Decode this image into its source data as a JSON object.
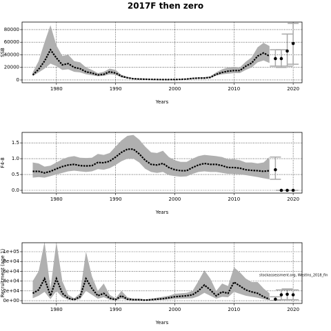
{
  "chart_data": [
    {
      "type": "line",
      "title": "2017F then zero",
      "ylabel": "SSB",
      "xlabel": "Years",
      "xlim": [
        1974.2,
        2021.5
      ],
      "xticks": [
        1980,
        1990,
        2000,
        2010,
        2020
      ],
      "ylim": [
        -4400,
        92000
      ],
      "yticks": [
        0,
        20000,
        40000,
        60000,
        80000
      ],
      "grid": true,
      "x": [
        1976,
        1977,
        1978,
        1979,
        1980,
        1981,
        1982,
        1983,
        1984,
        1985,
        1986,
        1987,
        1988,
        1989,
        1990,
        1991,
        1992,
        1993,
        1994,
        1995,
        1996,
        1997,
        1998,
        1999,
        2000,
        2001,
        2002,
        2003,
        2004,
        2005,
        2006,
        2007,
        2008,
        2009,
        2010,
        2011,
        2012,
        2013,
        2014,
        2015,
        2016
      ],
      "series": [
        {
          "color": "#000000",
          "band_color": "#b0b0b0",
          "values": [
            8000,
            17000,
            30000,
            48000,
            35000,
            24000,
            26000,
            20000,
            18000,
            13000,
            11000,
            8000,
            9000,
            13000,
            11000,
            6000,
            3500,
            2000,
            1500,
            1200,
            1000,
            800,
            700,
            700,
            800,
            1000,
            1500,
            2500,
            3000,
            3000,
            4000,
            9000,
            12000,
            14000,
            15000,
            15000,
            22000,
            27000,
            38000,
            43000,
            38000
          ],
          "upper": [
            12000,
            30000,
            60000,
            87000,
            55000,
            38000,
            40000,
            30000,
            28000,
            20000,
            16000,
            11000,
            13000,
            18000,
            16000,
            8000,
            5000,
            3000,
            2500,
            2000,
            1500,
            1300,
            1200,
            1200,
            1300,
            1500,
            2200,
            3500,
            4000,
            4500,
            6000,
            12000,
            17000,
            20000,
            21000,
            20000,
            29000,
            36000,
            52000,
            59000,
            54000
          ],
          "lower": [
            6000,
            12000,
            18000,
            26000,
            22000,
            16000,
            17000,
            13000,
            12000,
            9000,
            7500,
            6000,
            6500,
            9000,
            8000,
            4000,
            2500,
            1500,
            1000,
            800,
            600,
            500,
            400,
            400,
            500,
            700,
            1000,
            1800,
            2200,
            2200,
            3000,
            7000,
            9000,
            10000,
            11000,
            11000,
            16000,
            20000,
            28000,
            31000,
            27000
          ]
        }
      ],
      "projection": {
        "x": [
          2017,
          2018,
          2019,
          2020
        ],
        "values": [
          34000,
          34000,
          46000,
          58000
        ],
        "lower": [
          22000,
          20000,
          22000,
          25000
        ],
        "upper": [
          48000,
          48000,
          73000,
          90000
        ]
      }
    },
    {
      "type": "line",
      "ylabel": "F4-8",
      "xlabel": "Years",
      "xlim": [
        1974.2,
        2021.5
      ],
      "xticks": [
        1980,
        1990,
        2000,
        2010,
        2020
      ],
      "ylim": [
        -0.087,
        1.83
      ],
      "yticks": [
        {
          "value": 0,
          "label": "0.0"
        },
        {
          "value": 0.5,
          "label": "0.5"
        },
        {
          "value": 1,
          "label": "1.0"
        },
        {
          "value": 1.5,
          "label": "1.5"
        }
      ],
      "grid": true,
      "x": [
        1976,
        1977,
        1978,
        1979,
        1980,
        1981,
        1982,
        1983,
        1984,
        1985,
        1986,
        1987,
        1988,
        1989,
        1990,
        1991,
        1992,
        1993,
        1994,
        1995,
        1996,
        1997,
        1998,
        1999,
        2000,
        2001,
        2002,
        2003,
        2004,
        2005,
        2006,
        2007,
        2008,
        2009,
        2010,
        2011,
        2012,
        2013,
        2014,
        2015,
        2016
      ],
      "series": [
        {
          "color": "#000000",
          "band_color": "#b0b0b0",
          "values": [
            0.6,
            0.6,
            0.55,
            0.6,
            0.68,
            0.75,
            0.8,
            0.82,
            0.78,
            0.77,
            0.78,
            0.88,
            0.87,
            0.92,
            1.05,
            1.2,
            1.3,
            1.3,
            1.15,
            0.95,
            0.82,
            0.8,
            0.85,
            0.72,
            0.65,
            0.62,
            0.62,
            0.72,
            0.8,
            0.85,
            0.82,
            0.82,
            0.78,
            0.72,
            0.72,
            0.7,
            0.65,
            0.63,
            0.62,
            0.6,
            0.62
          ],
          "upper": [
            0.88,
            0.85,
            0.75,
            0.78,
            0.88,
            0.98,
            1.05,
            1.08,
            1.03,
            1.02,
            1.03,
            1.15,
            1.12,
            1.18,
            1.38,
            1.58,
            1.72,
            1.75,
            1.6,
            1.38,
            1.2,
            1.18,
            1.25,
            1.05,
            0.95,
            0.9,
            0.9,
            1,
            1.08,
            1.12,
            1.1,
            1.08,
            1.05,
            0.98,
            0.98,
            0.95,
            0.88,
            0.88,
            0.85,
            0.88,
            1.05
          ],
          "lower": [
            0.4,
            0.42,
            0.4,
            0.45,
            0.5,
            0.55,
            0.6,
            0.62,
            0.6,
            0.58,
            0.6,
            0.67,
            0.65,
            0.7,
            0.8,
            0.92,
            1,
            1,
            0.88,
            0.68,
            0.58,
            0.55,
            0.58,
            0.48,
            0.45,
            0.43,
            0.44,
            0.52,
            0.58,
            0.6,
            0.58,
            0.58,
            0.55,
            0.52,
            0.52,
            0.5,
            0.48,
            0.45,
            0.42,
            0.38,
            0.35
          ]
        }
      ],
      "projection": {
        "x": [
          2017,
          2018,
          2019,
          2020
        ],
        "values": [
          0.65,
          0,
          0,
          0
        ],
        "lower": [
          0.35,
          0,
          0,
          0
        ],
        "upper": [
          1.05,
          0,
          0,
          0
        ]
      }
    },
    {
      "type": "line",
      "ylabel": "Recruitment (age 1)",
      "xlabel": "Years",
      "annotation": "stockassessment.org, WestIns_2018_fin",
      "xlim": [
        1974.2,
        2021.5
      ],
      "xticks": [
        1980,
        1990,
        2000,
        2010,
        2020
      ],
      "ylim": [
        -5600,
        118300
      ],
      "yticks": [
        {
          "value": 0,
          "label": "0e+00"
        },
        {
          "value": 20000,
          "label": "2e+04"
        },
        {
          "value": 40000,
          "label": "4e+04"
        },
        {
          "value": 60000,
          "label": "6e+04"
        },
        {
          "value": 80000,
          "label": "8e+04"
        },
        {
          "value": 100000,
          "label": "1e+05"
        }
      ],
      "grid": true,
      "x": [
        1976,
        1977,
        1978,
        1979,
        1980,
        1981,
        1982,
        1983,
        1984,
        1985,
        1986,
        1987,
        1988,
        1989,
        1990,
        1991,
        1992,
        1993,
        1994,
        1995,
        1996,
        1997,
        1998,
        1999,
        2000,
        2001,
        2002,
        2003,
        2004,
        2005,
        2006,
        2007,
        2008,
        2009,
        2010,
        2011,
        2012,
        2013,
        2014,
        2015,
        2016
      ],
      "series": [
        {
          "color": "#000000",
          "band_color": "#b0b0b0",
          "values": [
            15000,
            22000,
            45000,
            10000,
            45000,
            15000,
            5000,
            2000,
            8000,
            45000,
            25000,
            10000,
            15000,
            5000,
            2000,
            10000,
            3000,
            2000,
            2000,
            1000,
            2000,
            3000,
            4000,
            6000,
            8000,
            9000,
            10000,
            12000,
            20000,
            32000,
            22000,
            10000,
            18000,
            15000,
            38000,
            30000,
            22000,
            18000,
            15000,
            8000,
            3000
          ],
          "upper": [
            40000,
            60000,
            120000,
            25000,
            120000,
            40000,
            12000,
            5000,
            15000,
            100000,
            50000,
            20000,
            35000,
            12000,
            5000,
            20000,
            7000,
            4000,
            4000,
            2500,
            4000,
            6000,
            8000,
            10000,
            14000,
            15000,
            16000,
            20000,
            40000,
            62000,
            45000,
            20000,
            35000,
            30000,
            68000,
            58000,
            45000,
            38000,
            38000,
            25000,
            15000
          ],
          "lower": [
            5000,
            10000,
            18000,
            3000,
            20000,
            7000,
            2000,
            500,
            3000,
            20000,
            12000,
            4000,
            7000,
            2000,
            500,
            4000,
            1000,
            700,
            700,
            400,
            800,
            1200,
            1800,
            2500,
            3500,
            4000,
            4500,
            5000,
            9000,
            16000,
            10000,
            4000,
            8000,
            7000,
            18000,
            14000,
            10000,
            8000,
            6000,
            3000,
            1000
          ]
        }
      ],
      "projection": {
        "x": [
          2017,
          2018,
          2019,
          2020
        ],
        "values": [
          3000,
          12000,
          13000,
          12000
        ],
        "lower": [
          500,
          2000,
          2000,
          2000
        ],
        "upper": [
          8000,
          22000,
          24000,
          22000
        ]
      }
    }
  ]
}
